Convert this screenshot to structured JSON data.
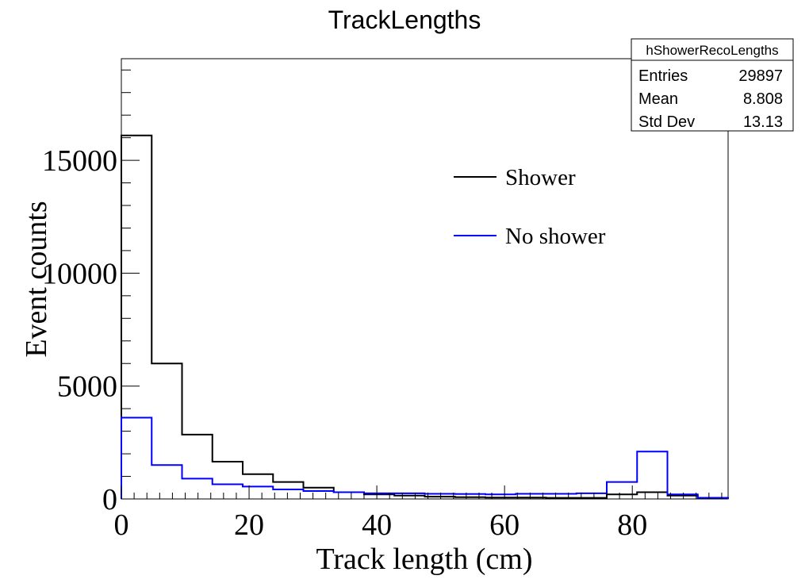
{
  "chart_data": {
    "type": "histogram",
    "title": "TrackLengths",
    "xlabel": "Track length (cm)",
    "ylabel": "Event counts",
    "xlim": [
      0,
      95
    ],
    "ylim": [
      0,
      19500
    ],
    "xticks": [
      0,
      20,
      40,
      60,
      80
    ],
    "yticks": [
      0,
      5000,
      10000,
      15000
    ],
    "bin_width": 4.75,
    "bin_edges": [
      0,
      4.75,
      9.5,
      14.25,
      19,
      23.75,
      28.5,
      33.25,
      38,
      42.75,
      47.5,
      52.25,
      57,
      61.75,
      66.5,
      71.25,
      76,
      80.75,
      85.5,
      90.25,
      95
    ],
    "series": [
      {
        "name": "Shower",
        "color": "#000000",
        "values": [
          16100,
          6000,
          2850,
          1650,
          1100,
          750,
          500,
          300,
          200,
          150,
          100,
          80,
          60,
          60,
          50,
          50,
          200,
          300,
          150,
          50
        ]
      },
      {
        "name": "No shower",
        "color": "#0000ff",
        "values": [
          3600,
          1500,
          900,
          650,
          550,
          420,
          350,
          300,
          250,
          250,
          230,
          220,
          200,
          230,
          230,
          250,
          750,
          2100,
          200,
          50
        ]
      }
    ],
    "legend": {
      "position": "top-right",
      "entries": [
        "Shower",
        "No shower"
      ]
    },
    "stats_box": {
      "name": "hShowerRecoLengths",
      "rows": [
        {
          "label": "Entries",
          "value": "29897"
        },
        {
          "label": "Mean",
          "value": "8.808"
        },
        {
          "label": "Std Dev",
          "value": "13.13"
        }
      ]
    },
    "grid": false
  }
}
